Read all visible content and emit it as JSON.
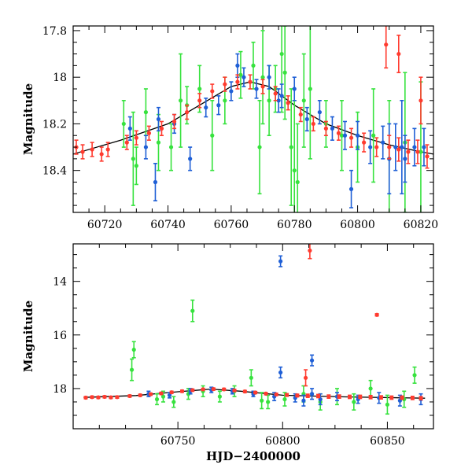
{
  "chart_data": [
    {
      "type": "scatter",
      "panel": "top",
      "title": "",
      "xlabel": "",
      "ylabel": "Magnitude",
      "xlim": [
        60710,
        60824
      ],
      "ylim": [
        18.58,
        17.78
      ],
      "y_inverted": true,
      "x_ticks": [
        60720,
        60740,
        60760,
        60780,
        60800,
        60820
      ],
      "y_ticks": [
        17.8,
        18,
        18.2,
        18.4
      ],
      "y_tick_labels": [
        "17.8",
        "18",
        "18.2",
        "18.4"
      ],
      "grid": false,
      "legend": "none",
      "model_curve": {
        "color": "#000000",
        "x": [
          60710,
          60725,
          60740,
          60750,
          60760,
          60766,
          60772,
          60780,
          60790,
          60800,
          60810,
          60820,
          60824
        ],
        "y": [
          18.33,
          18.27,
          18.2,
          18.12,
          18.04,
          18.02,
          18.04,
          18.12,
          18.2,
          18.25,
          18.29,
          18.32,
          18.33
        ]
      },
      "series": [
        {
          "color": "#ff3b2f",
          "x": [
            60711,
            60713,
            60716,
            60719,
            60721,
            60727,
            60730,
            60734,
            60738,
            60742,
            60746,
            60750,
            60754,
            60758,
            60762,
            60766,
            60770,
            60774,
            60778,
            60782,
            60786,
            60790,
            60794,
            60798,
            60802,
            60806,
            60810,
            60813,
            60816,
            60819,
            60822,
            60809,
            60813,
            60820
          ],
          "y": [
            18.3,
            18.32,
            18.31,
            18.33,
            18.31,
            18.28,
            18.26,
            18.24,
            18.22,
            18.19,
            18.15,
            18.1,
            18.06,
            18.03,
            18.02,
            18.02,
            18.04,
            18.07,
            18.11,
            18.16,
            18.2,
            18.22,
            18.24,
            18.26,
            18.28,
            18.3,
            18.3,
            18.31,
            18.32,
            18.32,
            18.34,
            17.86,
            17.9,
            18.1
          ],
          "yerr": [
            0.03,
            0.03,
            0.03,
            0.03,
            0.03,
            0.03,
            0.03,
            0.03,
            0.03,
            0.03,
            0.03,
            0.03,
            0.03,
            0.03,
            0.03,
            0.03,
            0.03,
            0.03,
            0.03,
            0.03,
            0.03,
            0.03,
            0.03,
            0.04,
            0.04,
            0.04,
            0.05,
            0.05,
            0.05,
            0.05,
            0.05,
            0.1,
            0.08,
            0.1
          ]
        },
        {
          "color": "#1f5fd6",
          "x": [
            60728,
            60733,
            60737,
            60742,
            60747,
            60752,
            60756,
            60760,
            60764,
            60768,
            60772,
            60776,
            60780,
            60784,
            60788,
            60792,
            60796,
            60800,
            60804,
            60808,
            60812,
            60815,
            60818,
            60821,
            60736,
            60762,
            60775,
            60798,
            60810,
            60814
          ],
          "y": [
            18.22,
            18.3,
            18.18,
            18.2,
            18.35,
            18.13,
            18.12,
            18.06,
            18.0,
            18.05,
            18.0,
            18.08,
            18.05,
            18.18,
            18.15,
            18.22,
            18.25,
            18.25,
            18.3,
            18.28,
            18.3,
            18.35,
            18.3,
            18.3,
            18.45,
            17.95,
            18.1,
            18.48,
            18.35,
            18.3
          ],
          "yerr": [
            0.05,
            0.05,
            0.05,
            0.04,
            0.05,
            0.04,
            0.04,
            0.04,
            0.04,
            0.04,
            0.05,
            0.05,
            0.05,
            0.05,
            0.05,
            0.05,
            0.06,
            0.06,
            0.07,
            0.07,
            0.1,
            0.1,
            0.08,
            0.08,
            0.08,
            0.05,
            0.05,
            0.08,
            0.15,
            0.2
          ]
        },
        {
          "color": "#37e23e",
          "x": [
            60726,
            60730,
            60733,
            60737,
            60741,
            60746,
            60750,
            60754,
            60758,
            60763,
            60767,
            60770,
            60772,
            60774,
            60777,
            60779,
            60781,
            60783,
            60785,
            60790,
            60795,
            60800,
            60805,
            60810,
            60815,
            60820,
            60729,
            60744,
            60769,
            60776,
            60780
          ],
          "y": [
            18.2,
            18.38,
            18.15,
            18.28,
            18.3,
            18.12,
            18.05,
            18.25,
            18.1,
            17.99,
            17.95,
            18.0,
            18.1,
            18.05,
            17.98,
            18.3,
            18.45,
            18.1,
            18.05,
            18.2,
            18.25,
            18.3,
            18.25,
            18.35,
            18.28,
            18.32,
            18.35,
            18.1,
            18.3,
            17.9,
            18.4
          ],
          "yerr": [
            0.1,
            0.08,
            0.1,
            0.12,
            0.1,
            0.08,
            0.1,
            0.15,
            0.1,
            0.1,
            0.1,
            0.2,
            0.15,
            0.1,
            0.2,
            0.25,
            0.25,
            0.2,
            0.3,
            0.1,
            0.15,
            0.15,
            0.2,
            0.25,
            0.3,
            0.3,
            0.2,
            0.2,
            0.2,
            0.25,
            0.3
          ]
        }
      ]
    },
    {
      "type": "scatter",
      "panel": "bottom",
      "title": "",
      "xlabel": "HJD−2400000",
      "ylabel": "Magnitude",
      "xlim": [
        60700,
        60872
      ],
      "ylim": [
        19.5,
        12.6
      ],
      "y_inverted": true,
      "x_ticks": [
        60750,
        60800,
        60850
      ],
      "y_ticks": [
        14,
        16,
        18
      ],
      "y_tick_labels": [
        "14",
        "16",
        "18"
      ],
      "grid": false,
      "legend": "none",
      "model_curve": {
        "color": "#000000",
        "x": [
          60705,
          60730,
          60750,
          60766,
          60780,
          60800,
          60830,
          60868
        ],
        "y": [
          18.33,
          18.26,
          18.12,
          18.02,
          18.1,
          18.25,
          18.31,
          18.36
        ]
      },
      "series": [
        {
          "color": "#ff3b2f",
          "x": [
            60706,
            60709,
            60712,
            60715,
            60718,
            60721,
            60727,
            60732,
            60737,
            60742,
            60747,
            60752,
            60757,
            60762,
            60767,
            60772,
            60777,
            60782,
            60787,
            60792,
            60797,
            60802,
            60807,
            60812,
            60817,
            60822,
            60827,
            60832,
            60837,
            60842,
            60847,
            60852,
            60857,
            60862,
            60866,
            60813,
            60845,
            60811
          ],
          "y": [
            18.34,
            18.32,
            18.33,
            18.31,
            18.33,
            18.32,
            18.28,
            18.25,
            18.21,
            18.18,
            18.14,
            18.1,
            18.06,
            18.03,
            18.02,
            18.03,
            18.07,
            18.11,
            18.15,
            18.19,
            18.22,
            18.24,
            18.26,
            18.27,
            18.28,
            18.3,
            18.3,
            18.31,
            18.31,
            18.32,
            18.33,
            18.34,
            18.34,
            18.35,
            18.36,
            12.85,
            15.25,
            17.6
          ],
          "yerr": [
            0.04,
            0.04,
            0.04,
            0.04,
            0.04,
            0.04,
            0.04,
            0.04,
            0.04,
            0.04,
            0.04,
            0.04,
            0.04,
            0.04,
            0.04,
            0.04,
            0.04,
            0.04,
            0.04,
            0.04,
            0.04,
            0.05,
            0.05,
            0.06,
            0.06,
            0.06,
            0.06,
            0.06,
            0.06,
            0.06,
            0.06,
            0.06,
            0.06,
            0.06,
            0.06,
            0.3,
            0.04,
            0.3
          ]
        },
        {
          "color": "#1f5fd6",
          "x": [
            60736,
            60746,
            60756,
            60766,
            60776,
            60786,
            60796,
            60799,
            60806,
            60810,
            60814,
            60818,
            60826,
            60836,
            60846,
            60856,
            60866,
            60799,
            60814
          ],
          "y": [
            18.2,
            18.25,
            18.1,
            18.05,
            18.1,
            18.2,
            18.3,
            17.4,
            18.35,
            18.45,
            18.2,
            18.4,
            18.3,
            18.4,
            18.35,
            18.45,
            18.4,
            13.25,
            16.95
          ],
          "yerr": [
            0.1,
            0.1,
            0.1,
            0.1,
            0.1,
            0.1,
            0.15,
            0.2,
            0.15,
            0.2,
            0.2,
            0.2,
            0.15,
            0.15,
            0.2,
            0.2,
            0.2,
            0.2,
            0.2
          ]
        },
        {
          "color": "#37e23e",
          "x": [
            60728,
            60729,
            60740,
            60748,
            60755,
            60762,
            60770,
            60777,
            60785,
            60793,
            60801,
            60810,
            60818,
            60826,
            60834,
            60842,
            60850,
            60858,
            60863,
            60757,
            60743,
            60790
          ],
          "y": [
            17.3,
            16.55,
            18.4,
            18.5,
            18.2,
            18.1,
            18.3,
            18.1,
            17.6,
            18.5,
            18.4,
            18.2,
            18.5,
            18.3,
            18.5,
            18.0,
            18.6,
            18.4,
            17.5,
            15.1,
            18.3,
            18.45
          ],
          "yerr": [
            0.4,
            0.3,
            0.2,
            0.2,
            0.2,
            0.2,
            0.2,
            0.2,
            0.3,
            0.25,
            0.25,
            0.3,
            0.3,
            0.3,
            0.3,
            0.3,
            0.35,
            0.3,
            0.3,
            0.4,
            0.2,
            0.3
          ]
        }
      ]
    }
  ]
}
